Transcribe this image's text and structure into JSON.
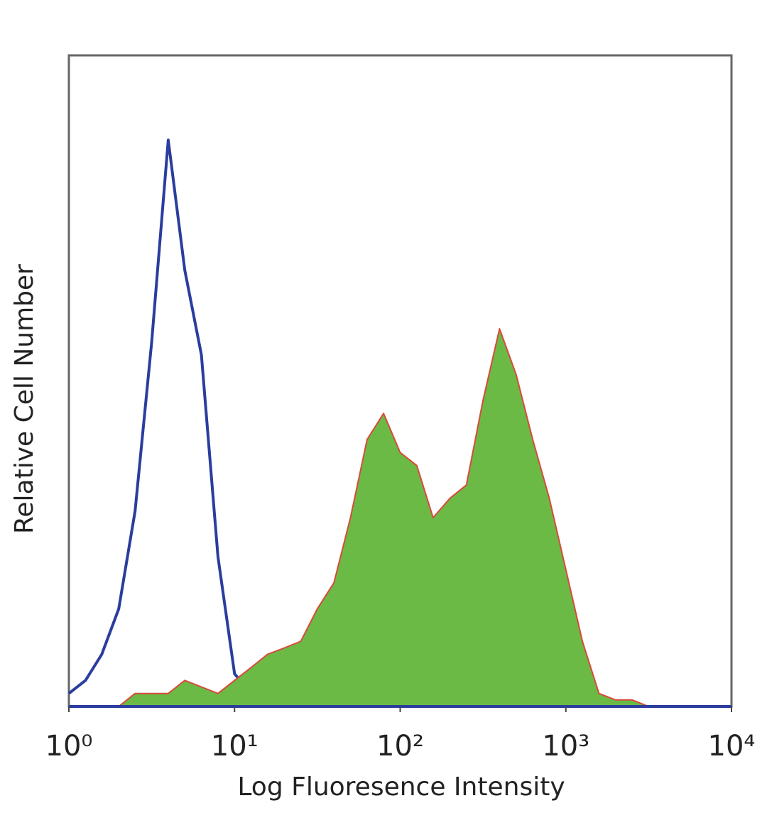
{
  "chart_data": {
    "type": "histogram-overlay",
    "xlabel": "Log Fluoresence Intensity",
    "ylabel": "Relative Cell Number",
    "xscale": "log",
    "xlim": [
      1,
      10000
    ],
    "ylim": [
      0,
      100
    ],
    "xticks": [
      {
        "value": 1,
        "label": "10⁰"
      },
      {
        "value": 10,
        "label": "10¹"
      },
      {
        "value": 100,
        "label": "10²"
      },
      {
        "value": 1000,
        "label": "10³"
      },
      {
        "value": 10000,
        "label": "10⁴"
      }
    ],
    "x": [
      1,
      1.26,
      1.58,
      2,
      2.51,
      3.16,
      3.98,
      5.01,
      6.31,
      7.94,
      10,
      12.6,
      15.8,
      20,
      25.1,
      31.6,
      39.8,
      50.1,
      63.1,
      79.4,
      100,
      126,
      158,
      200,
      251,
      316,
      398,
      501,
      631,
      794,
      1000,
      1259,
      1585,
      1995,
      2512,
      3162,
      3981,
      5012,
      6310,
      7943,
      10000
    ],
    "series": [
      {
        "color": "#2b3d9e",
        "fill": false,
        "values": [
          2,
          4,
          8,
          15,
          30,
          56,
          87,
          67,
          54,
          23,
          5,
          2,
          0,
          0,
          0,
          0,
          0,
          0,
          0,
          0,
          0,
          0,
          0,
          0,
          0,
          0,
          0,
          0,
          0,
          0,
          0,
          0,
          0,
          0,
          0,
          0,
          0,
          0,
          0,
          0,
          0
        ]
      },
      {
        "color": "#d84a3a",
        "fill": "#6aba45",
        "values": [
          0,
          0,
          0,
          0,
          2,
          2,
          2,
          4,
          3,
          2,
          4,
          6,
          8,
          9,
          10,
          15,
          19,
          29,
          41,
          45,
          39,
          37,
          29,
          32,
          34,
          47,
          58,
          51,
          41,
          32,
          21,
          10,
          2,
          1,
          1,
          0,
          0,
          0,
          0,
          0,
          0
        ]
      }
    ]
  }
}
